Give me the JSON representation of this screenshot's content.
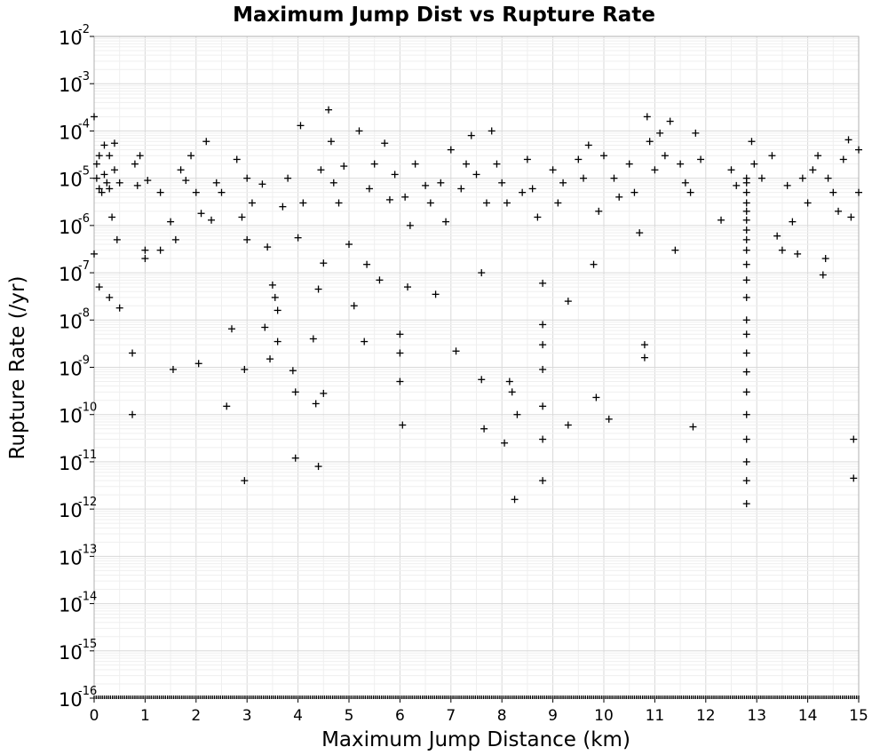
{
  "chart_data": {
    "type": "scatter",
    "title": "Maximum Jump Dist vs Rupture Rate",
    "xlabel": "Maximum Jump Distance (km)",
    "ylabel": "Rupture Rate (/yr)",
    "xlim": [
      0,
      15
    ],
    "ylim_log10": [
      -16,
      -2
    ],
    "yscale": "log",
    "marker": "plus",
    "grid": true,
    "x_ticks": [
      "0",
      "1",
      "2",
      "3",
      "4",
      "5",
      "6",
      "7",
      "8",
      "9",
      "10",
      "11",
      "12",
      "13",
      "14",
      "15"
    ],
    "y_ticks": [
      {
        "base": "10",
        "exp": "-2"
      },
      {
        "base": "10",
        "exp": "-3"
      },
      {
        "base": "10",
        "exp": "-4"
      },
      {
        "base": "10",
        "exp": "-5"
      },
      {
        "base": "10",
        "exp": "-6"
      },
      {
        "base": "10",
        "exp": "-7"
      },
      {
        "base": "10",
        "exp": "-8"
      },
      {
        "base": "10",
        "exp": "-9"
      },
      {
        "base": "10",
        "exp": "-10"
      },
      {
        "base": "10",
        "exp": "-11"
      },
      {
        "base": "10",
        "exp": "-12"
      },
      {
        "base": "10",
        "exp": "-13"
      },
      {
        "base": "10",
        "exp": "-14"
      },
      {
        "base": "10",
        "exp": "-15"
      },
      {
        "base": "10",
        "exp": "-16"
      }
    ],
    "points": [
      [
        0.0,
        0.0002
      ],
      [
        0.0,
        2.5e-07
      ],
      [
        0.05,
        2e-05
      ],
      [
        0.05,
        1e-05
      ],
      [
        0.1,
        6e-06
      ],
      [
        0.1,
        3e-05
      ],
      [
        0.15,
        5e-06
      ],
      [
        0.2,
        5e-05
      ],
      [
        0.2,
        1.2e-05
      ],
      [
        0.25,
        8e-06
      ],
      [
        0.3,
        3e-05
      ],
      [
        0.3,
        6e-06
      ],
      [
        0.35,
        1.5e-06
      ],
      [
        0.4,
        5.5e-05
      ],
      [
        0.4,
        1.5e-05
      ],
      [
        0.45,
        5e-07
      ],
      [
        0.5,
        8e-06
      ],
      [
        0.1,
        5e-08
      ],
      [
        0.3,
        3e-08
      ],
      [
        0.5,
        1.8e-08
      ],
      [
        0.75,
        2e-09
      ],
      [
        0.75,
        1e-10
      ],
      [
        0.8,
        2e-05
      ],
      [
        0.85,
        7e-06
      ],
      [
        0.9,
        3e-05
      ],
      [
        1.0,
        3e-07
      ],
      [
        1.0,
        2e-07
      ],
      [
        1.05,
        9e-06
      ],
      [
        1.3,
        5e-06
      ],
      [
        1.3,
        3e-07
      ],
      [
        1.5,
        1.2e-06
      ],
      [
        1.55,
        9e-10
      ],
      [
        1.6,
        5e-07
      ],
      [
        1.7,
        1.5e-05
      ],
      [
        1.8,
        9e-06
      ],
      [
        1.9,
        3e-05
      ],
      [
        2.0,
        5e-06
      ],
      [
        2.05,
        1.2e-09
      ],
      [
        2.1,
        1.8e-06
      ],
      [
        2.2,
        6e-05
      ],
      [
        2.3,
        1.3e-06
      ],
      [
        2.4,
        8e-06
      ],
      [
        2.5,
        5e-06
      ],
      [
        2.6,
        1.5e-10
      ],
      [
        2.7,
        6.5e-09
      ],
      [
        2.8,
        2.5e-05
      ],
      [
        2.9,
        1.5e-06
      ],
      [
        2.95,
        9e-10
      ],
      [
        2.95,
        4e-12
      ],
      [
        3.0,
        5e-07
      ],
      [
        3.0,
        1e-05
      ],
      [
        3.1,
        3e-06
      ],
      [
        3.3,
        7.5e-06
      ],
      [
        3.35,
        7e-09
      ],
      [
        3.4,
        3.5e-07
      ],
      [
        3.45,
        1.5e-09
      ],
      [
        3.5,
        5.5e-08
      ],
      [
        3.55,
        3e-08
      ],
      [
        3.6,
        1.6e-08
      ],
      [
        3.6,
        3.5e-09
      ],
      [
        3.7,
        2.5e-06
      ],
      [
        3.8,
        1e-05
      ],
      [
        3.9,
        8.5e-10
      ],
      [
        3.95,
        3e-10
      ],
      [
        3.95,
        1.2e-11
      ],
      [
        4.0,
        5.5e-07
      ],
      [
        4.05,
        0.00013
      ],
      [
        4.1,
        3e-06
      ],
      [
        4.3,
        4e-09
      ],
      [
        4.35,
        1.7e-10
      ],
      [
        4.4,
        4.5e-08
      ],
      [
        4.45,
        1.5e-05
      ],
      [
        4.5,
        2.8e-10
      ],
      [
        4.5,
        1.6e-07
      ],
      [
        4.6,
        0.00028
      ],
      [
        4.65,
        6e-05
      ],
      [
        4.7,
        8e-06
      ],
      [
        4.4,
        8e-12
      ],
      [
        4.8,
        3e-06
      ],
      [
        4.9,
        1.8e-05
      ],
      [
        5.0,
        4e-07
      ],
      [
        5.1,
        2e-08
      ],
      [
        5.2,
        0.0001
      ],
      [
        5.3,
        3.5e-09
      ],
      [
        5.35,
        1.5e-07
      ],
      [
        5.4,
        6e-06
      ],
      [
        5.5,
        2e-05
      ],
      [
        5.6,
        7e-08
      ],
      [
        5.7,
        5.5e-05
      ],
      [
        5.8,
        3.5e-06
      ],
      [
        5.9,
        1.2e-05
      ],
      [
        6.0,
        5e-09
      ],
      [
        6.0,
        2e-09
      ],
      [
        6.0,
        5e-10
      ],
      [
        6.05,
        6e-11
      ],
      [
        6.1,
        4e-06
      ],
      [
        6.15,
        5e-08
      ],
      [
        6.2,
        1e-06
      ],
      [
        6.3,
        2e-05
      ],
      [
        6.5,
        7e-06
      ],
      [
        6.6,
        3e-06
      ],
      [
        6.7,
        3.5e-08
      ],
      [
        6.8,
        8e-06
      ],
      [
        6.9,
        1.2e-06
      ],
      [
        7.0,
        4e-05
      ],
      [
        7.1,
        2.2e-09
      ],
      [
        7.2,
        6e-06
      ],
      [
        7.3,
        2e-05
      ],
      [
        7.4,
        8e-05
      ],
      [
        7.5,
        1.2e-05
      ],
      [
        7.6,
        5.5e-10
      ],
      [
        7.6,
        1e-07
      ],
      [
        7.65,
        5e-11
      ],
      [
        7.7,
        3e-06
      ],
      [
        7.8,
        0.0001
      ],
      [
        7.9,
        2e-05
      ],
      [
        8.0,
        8e-06
      ],
      [
        8.05,
        2.5e-11
      ],
      [
        8.1,
        3e-06
      ],
      [
        8.15,
        5e-10
      ],
      [
        8.2,
        3e-10
      ],
      [
        8.25,
        1.6e-12
      ],
      [
        8.3,
        1e-10
      ],
      [
        8.4,
        5e-06
      ],
      [
        8.5,
        2.5e-05
      ],
      [
        8.6,
        6e-06
      ],
      [
        8.7,
        1.5e-06
      ],
      [
        8.8,
        8e-09
      ],
      [
        8.8,
        3e-09
      ],
      [
        8.8,
        9e-10
      ],
      [
        8.8,
        1.5e-10
      ],
      [
        8.8,
        3e-11
      ],
      [
        8.8,
        4e-12
      ],
      [
        8.8,
        6e-08
      ],
      [
        9.0,
        1.5e-05
      ],
      [
        9.1,
        3e-06
      ],
      [
        9.2,
        8e-06
      ],
      [
        9.3,
        2.5e-08
      ],
      [
        9.3,
        6e-11
      ],
      [
        9.5,
        2.5e-05
      ],
      [
        9.6,
        1e-05
      ],
      [
        9.7,
        5e-05
      ],
      [
        9.8,
        1.5e-07
      ],
      [
        9.85,
        2.3e-10
      ],
      [
        9.9,
        2e-06
      ],
      [
        10.0,
        3e-05
      ],
      [
        10.1,
        8e-11
      ],
      [
        10.2,
        1e-05
      ],
      [
        10.3,
        4e-06
      ],
      [
        10.5,
        2e-05
      ],
      [
        10.6,
        5e-06
      ],
      [
        10.7,
        7e-07
      ],
      [
        10.8,
        3e-09
      ],
      [
        10.8,
        1.6e-09
      ],
      [
        10.85,
        0.0002
      ],
      [
        10.9,
        6e-05
      ],
      [
        11.0,
        1.5e-05
      ],
      [
        11.1,
        9e-05
      ],
      [
        11.2,
        3e-05
      ],
      [
        11.3,
        0.00016
      ],
      [
        11.4,
        3e-07
      ],
      [
        11.5,
        2e-05
      ],
      [
        11.6,
        8e-06
      ],
      [
        11.7,
        5e-06
      ],
      [
        11.75,
        5.5e-11
      ],
      [
        11.8,
        9e-05
      ],
      [
        11.9,
        2.5e-05
      ],
      [
        12.3,
        1.3e-06
      ],
      [
        12.5,
        1.5e-05
      ],
      [
        12.6,
        7e-06
      ],
      [
        12.8,
        1e-05
      ],
      [
        12.8,
        8e-06
      ],
      [
        12.8,
        5e-06
      ],
      [
        12.8,
        3e-06
      ],
      [
        12.8,
        2e-06
      ],
      [
        12.8,
        1.3e-06
      ],
      [
        12.8,
        8e-07
      ],
      [
        12.8,
        5e-07
      ],
      [
        12.8,
        3e-07
      ],
      [
        12.8,
        1.5e-07
      ],
      [
        12.8,
        7e-08
      ],
      [
        12.8,
        3e-08
      ],
      [
        12.8,
        1e-08
      ],
      [
        12.8,
        5e-09
      ],
      [
        12.8,
        2e-09
      ],
      [
        12.8,
        8e-10
      ],
      [
        12.8,
        3e-10
      ],
      [
        12.8,
        1e-10
      ],
      [
        12.8,
        3e-11
      ],
      [
        12.8,
        1e-11
      ],
      [
        12.8,
        4e-12
      ],
      [
        12.8,
        1.3e-12
      ],
      [
        12.9,
        6e-05
      ],
      [
        12.95,
        2e-05
      ],
      [
        13.1,
        1e-05
      ],
      [
        13.3,
        3e-05
      ],
      [
        13.4,
        6e-07
      ],
      [
        13.5,
        3e-07
      ],
      [
        13.6,
        7e-06
      ],
      [
        13.7,
        1.2e-06
      ],
      [
        13.8,
        2.5e-07
      ],
      [
        13.9,
        1e-05
      ],
      [
        14.0,
        3e-06
      ],
      [
        14.1,
        1.5e-05
      ],
      [
        14.2,
        3e-05
      ],
      [
        14.3,
        9e-08
      ],
      [
        14.35,
        2e-07
      ],
      [
        14.4,
        1e-05
      ],
      [
        14.5,
        5e-06
      ],
      [
        14.6,
        2e-06
      ],
      [
        14.7,
        2.5e-05
      ],
      [
        14.8,
        6.5e-05
      ],
      [
        14.85,
        1.5e-06
      ],
      [
        14.9,
        3e-11
      ],
      [
        14.9,
        4.5e-12
      ],
      [
        15.0,
        4e-05
      ],
      [
        15.0,
        5e-06
      ]
    ]
  }
}
